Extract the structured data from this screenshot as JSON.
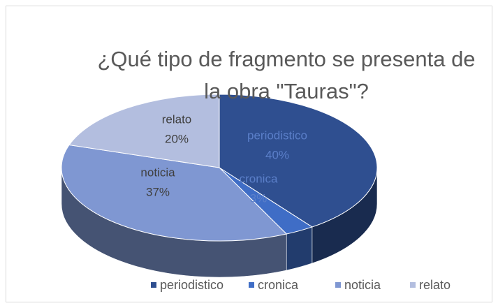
{
  "chart_data": {
    "type": "pie3d",
    "title": "¿Qué tipo de fragmento se presenta de la obra \"Tauras\"?",
    "categories": [
      "periodistico",
      "cronica",
      "noticia",
      "relato"
    ],
    "values": [
      40,
      3,
      37,
      20
    ],
    "value_labels": [
      "40%",
      "3%",
      "37%",
      "20%"
    ],
    "colors": [
      "#2f4f90",
      "#3f6dc6",
      "#7f97d2",
      "#b3bedf"
    ],
    "legend": "bottom"
  }
}
